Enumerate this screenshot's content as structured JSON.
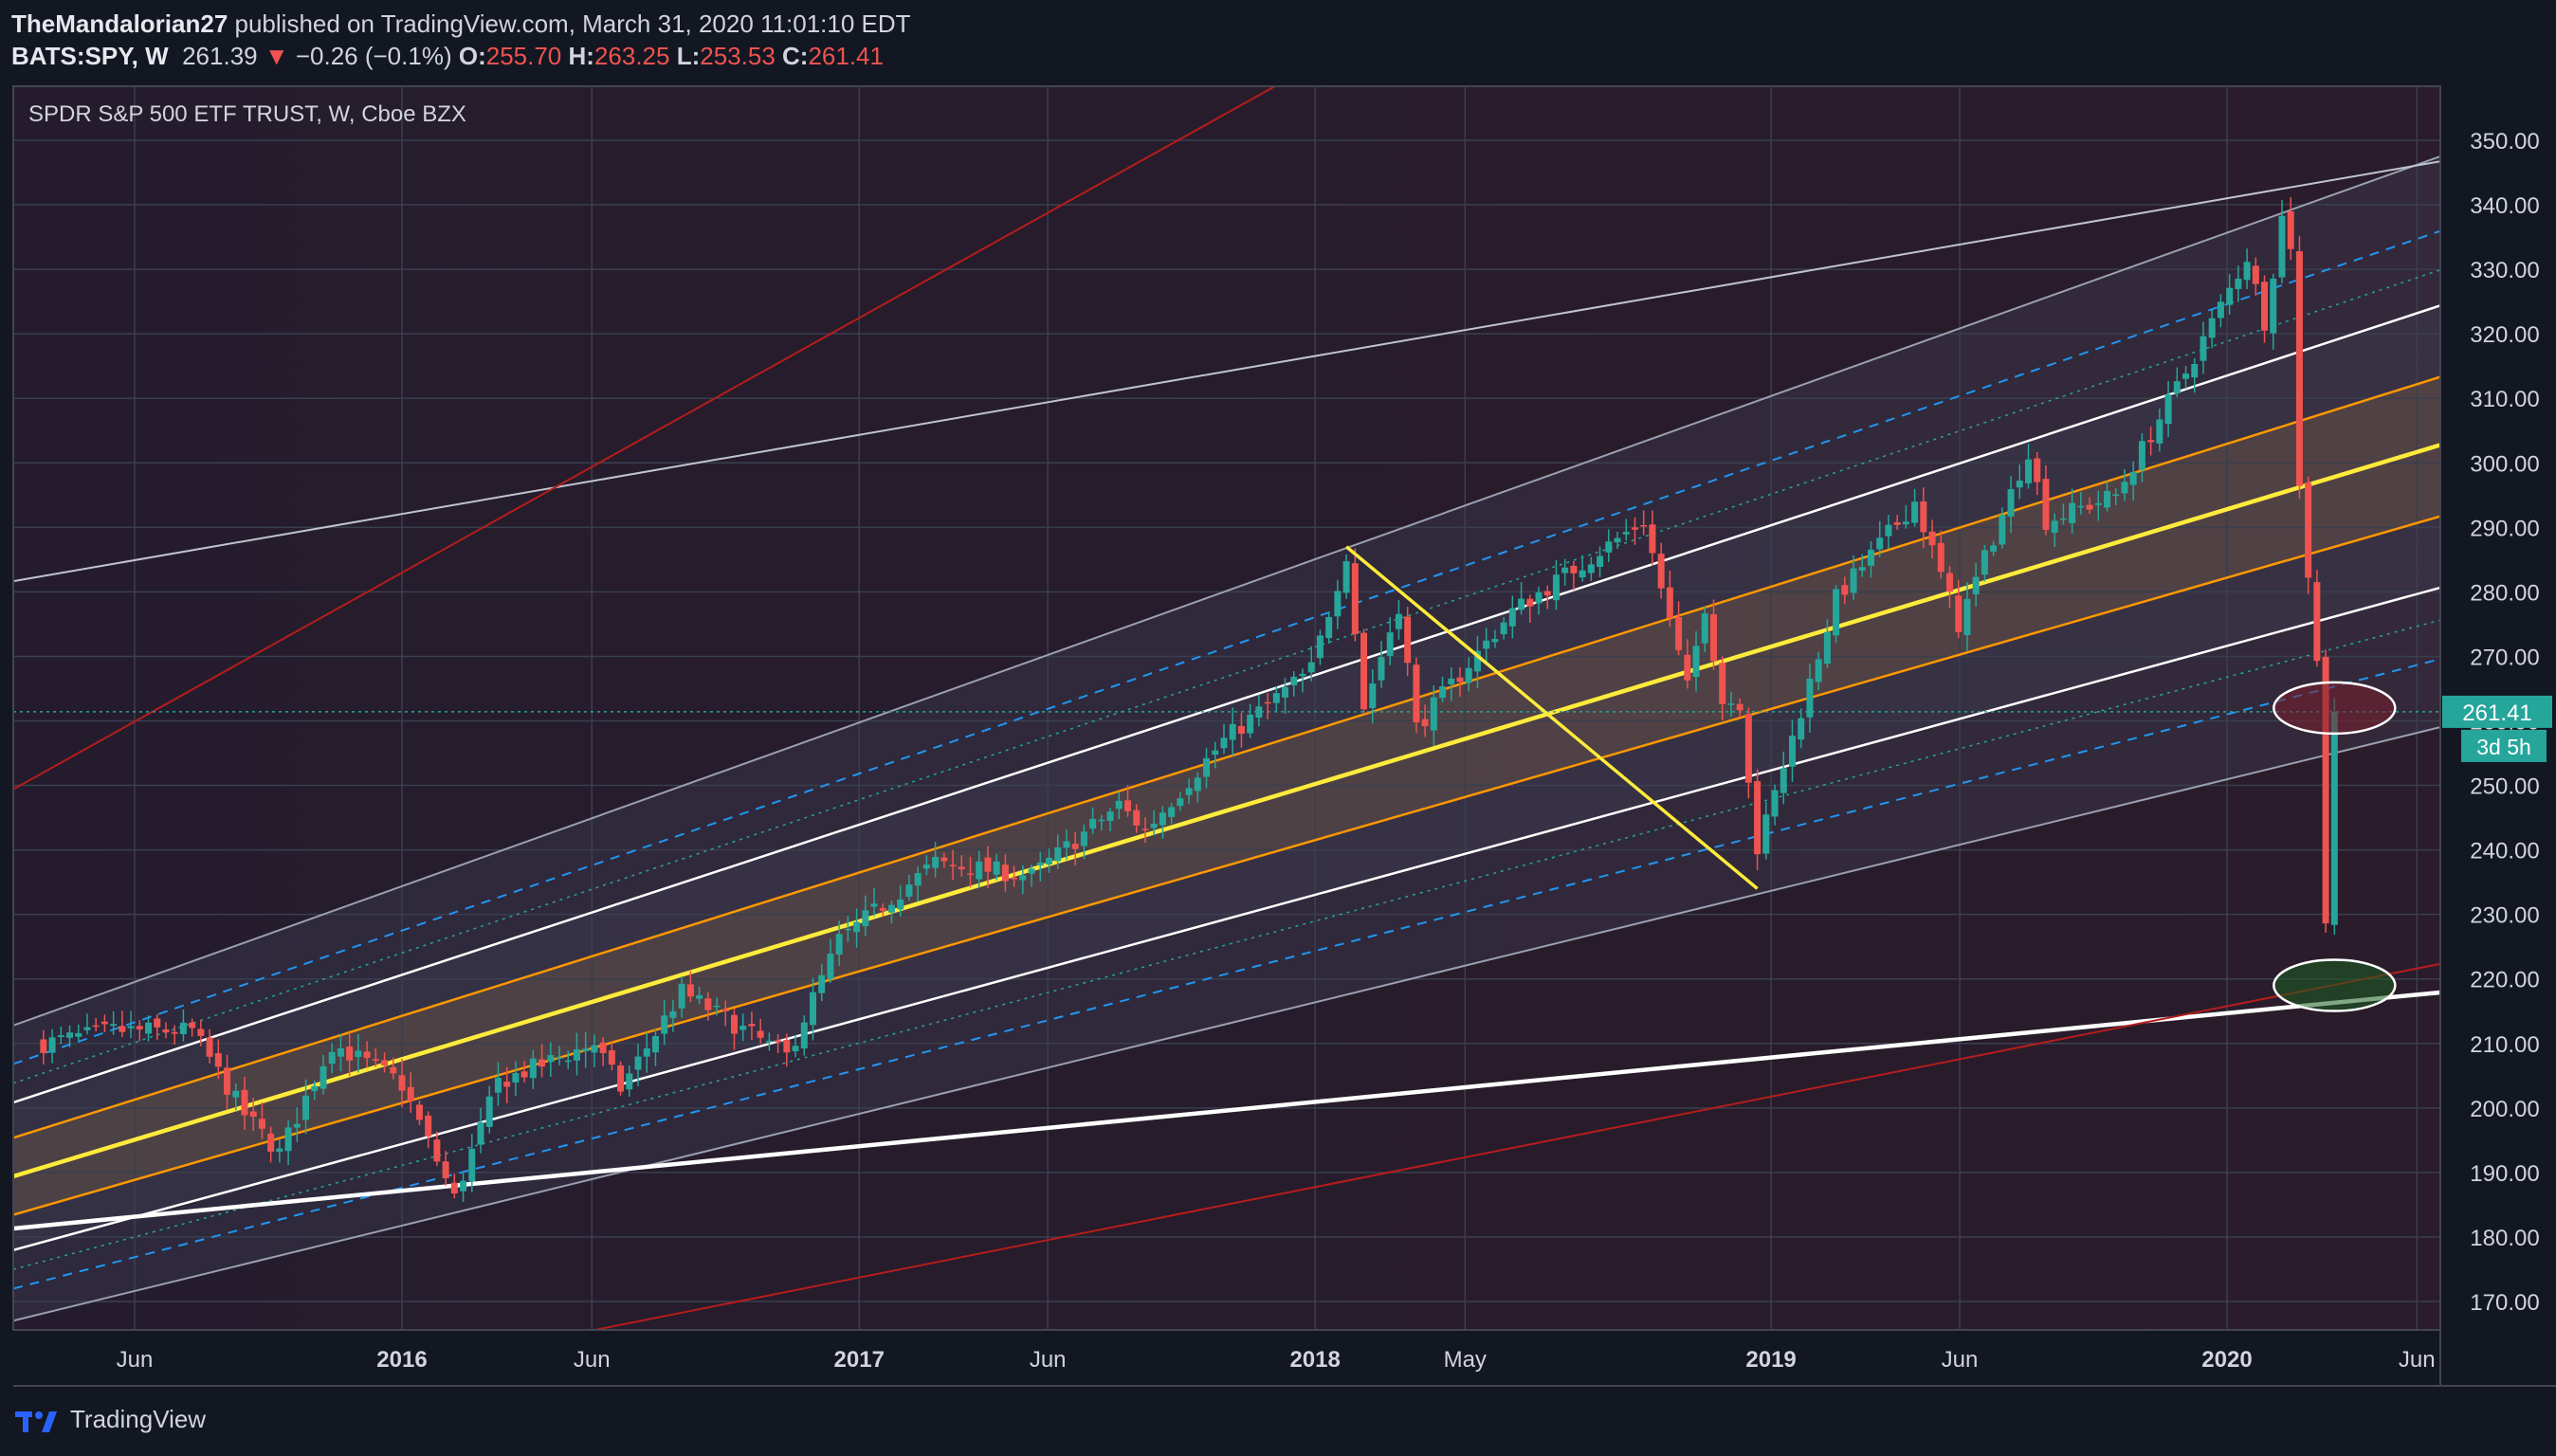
{
  "header": {
    "author": "TheMandalorian27",
    "published": " published on TradingView.com, March 31, 2020 11:01:10 EDT",
    "symbol": "BATS:SPY, W",
    "last": "261.39",
    "arrow": "▼",
    "change": "−0.26 (−0.1%)",
    "o_label": "O:",
    "o_value": "255.70",
    "h_label": "H:",
    "h_value": "263.25",
    "l_label": "L:",
    "l_value": "253.53",
    "c_label": "C:",
    "c_value": "261.41"
  },
  "footer": {
    "brand": "TradingView"
  },
  "colors": {
    "background": "#131722",
    "up": "#26a69a",
    "down": "#ef5350",
    "regression_center": "#ffeb3b",
    "orange_band": "#ff9800",
    "support_line": "#ffffff",
    "red_trend": "#b71c1c"
  },
  "chart_data": {
    "type": "candlestick",
    "title": "SPDR S&P 500 ETF TRUST, W, Cboe BZX",
    "y_ticks": [
      "350.00",
      "340.00",
      "330.00",
      "320.00",
      "310.00",
      "300.00",
      "290.00",
      "280.00",
      "270.00",
      "260.00",
      "250.00",
      "240.00",
      "230.00",
      "220.00",
      "210.00",
      "200.00",
      "190.00",
      "180.00",
      "170.00"
    ],
    "x_ticks": [
      "Jun",
      "2016",
      "Jun",
      "2017",
      "Jun",
      "2018",
      "May",
      "2019",
      "Jun",
      "2020",
      "Jun"
    ],
    "ylim": [
      165,
      358
    ],
    "last_price_label": "261.41",
    "countdown_label": "3d 5h",
    "close_path": [
      {
        "date": "2015-03-20",
        "value": 210
      },
      {
        "date": "2015-05-15",
        "value": 212
      },
      {
        "date": "2015-07-17",
        "value": 212
      },
      {
        "date": "2015-08-28",
        "value": 199
      },
      {
        "date": "2015-09-25",
        "value": 193
      },
      {
        "date": "2015-11-06",
        "value": 210
      },
      {
        "date": "2015-12-31",
        "value": 204
      },
      {
        "date": "2016-02-12",
        "value": 186
      },
      {
        "date": "2016-03-18",
        "value": 204
      },
      {
        "date": "2016-06-03",
        "value": 210
      },
      {
        "date": "2016-06-24",
        "value": 203
      },
      {
        "date": "2016-08-12",
        "value": 218
      },
      {
        "date": "2016-11-04",
        "value": 208
      },
      {
        "date": "2016-12-16",
        "value": 226
      },
      {
        "date": "2017-03-03",
        "value": 238
      },
      {
        "date": "2017-05-19",
        "value": 236
      },
      {
        "date": "2017-07-28",
        "value": 247
      },
      {
        "date": "2017-08-18",
        "value": 243
      },
      {
        "date": "2017-10-20",
        "value": 257
      },
      {
        "date": "2017-12-29",
        "value": 268
      },
      {
        "date": "2018-01-26",
        "value": 286
      },
      {
        "date": "2018-02-09",
        "value": 262
      },
      {
        "date": "2018-03-09",
        "value": 278
      },
      {
        "date": "2018-03-23",
        "value": 259
      },
      {
        "date": "2018-06-08",
        "value": 277
      },
      {
        "date": "2018-09-21",
        "value": 291
      },
      {
        "date": "2018-10-26",
        "value": 265
      },
      {
        "date": "2018-11-09",
        "value": 278
      },
      {
        "date": "2018-11-23",
        "value": 263
      },
      {
        "date": "2018-12-07",
        "value": 263
      },
      {
        "date": "2018-12-21",
        "value": 240
      },
      {
        "date": "2019-02-22",
        "value": 279
      },
      {
        "date": "2019-04-26",
        "value": 294
      },
      {
        "date": "2019-05-31",
        "value": 275
      },
      {
        "date": "2019-07-26",
        "value": 302
      },
      {
        "date": "2019-08-09",
        "value": 291
      },
      {
        "date": "2019-10-04",
        "value": 295
      },
      {
        "date": "2019-11-29",
        "value": 314
      },
      {
        "date": "2020-01-17",
        "value": 332
      },
      {
        "date": "2020-01-31",
        "value": 322
      },
      {
        "date": "2020-02-14",
        "value": 338
      },
      {
        "date": "2020-02-21",
        "value": 334
      },
      {
        "date": "2020-02-28",
        "value": 296
      },
      {
        "date": "2020-03-13",
        "value": 270
      },
      {
        "date": "2020-03-20",
        "value": 229
      },
      {
        "date": "2020-03-27",
        "value": 254
      },
      {
        "date": "2020-03-31",
        "value": 261.41
      }
    ],
    "annotations": [
      {
        "type": "ellipse",
        "color": "red",
        "center": {
          "date": "2020-03-27",
          "value": 262
        }
      },
      {
        "type": "ellipse",
        "color": "green",
        "center": {
          "date": "2020-03-27",
          "value": 219
        }
      },
      {
        "type": "line",
        "color": "yellow",
        "from": {
          "date": "2018-01-26",
          "value": 287
        },
        "to": {
          "date": "2018-12-21",
          "value": 234
        }
      }
    ]
  }
}
